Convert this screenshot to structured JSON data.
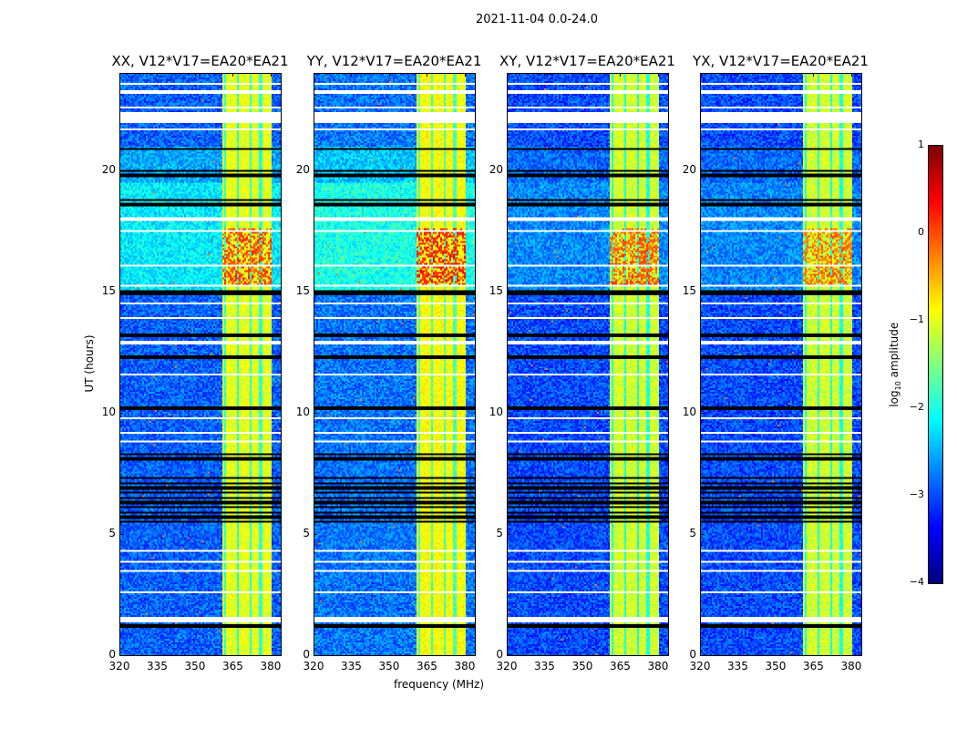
{
  "chart_data": {
    "type": "heatmap",
    "title": "2021-11-04 0.0-24.0",
    "xlabel": "frequency (MHz)",
    "ylabel": "UT (hours)",
    "xlim": [
      320,
      384
    ],
    "ylim": [
      0,
      24
    ],
    "xticks": [
      320,
      335,
      350,
      365,
      380
    ],
    "yticks": [
      0,
      5,
      10,
      15,
      20
    ],
    "colorbar": {
      "label": "log10 amplitude",
      "label_main": "log",
      "label_sub": "10",
      "label_rest": " amplitude",
      "range": [
        -4,
        1
      ],
      "ticks": [
        1,
        0,
        -1,
        -2,
        -3,
        -4
      ],
      "tick_labels": [
        "1",
        "0",
        "−1",
        "−2",
        "−3",
        "−4"
      ],
      "colormap": "jet"
    },
    "bright_band_mhz": [
      360.5,
      380
    ],
    "flagged_white_ut": [
      [
        23.55,
        23.65
      ],
      [
        23.15,
        23.3
      ],
      [
        22.55,
        22.65
      ],
      [
        22.0,
        22.4
      ],
      [
        21.65,
        21.72
      ],
      [
        17.95,
        18.05
      ],
      [
        17.45,
        17.52
      ],
      [
        16.05,
        16.12
      ],
      [
        15.25,
        15.32
      ],
      [
        14.45,
        14.55
      ],
      [
        13.85,
        13.92
      ],
      [
        12.85,
        12.95
      ],
      [
        11.55,
        11.62
      ],
      [
        9.75,
        9.85
      ],
      [
        9.15,
        9.22
      ],
      [
        8.75,
        8.85
      ],
      [
        4.25,
        4.32
      ],
      [
        3.85,
        3.92
      ],
      [
        3.45,
        3.52
      ],
      [
        2.55,
        2.62
      ],
      [
        1.35,
        1.6
      ]
    ],
    "flagged_black_ut": [
      20.9,
      20.0,
      19.8,
      18.8,
      18.6,
      15.0,
      14.9,
      13.2,
      12.3,
      10.2,
      8.3,
      8.1,
      7.3,
      7.1,
      6.9,
      6.7,
      6.5,
      6.3,
      6.1,
      5.9,
      5.7,
      5.5,
      1.2
    ],
    "panels": [
      {
        "title": "XX, V12*V17=EA20*EA21",
        "base_level": -2.9,
        "sky_level": -2.2,
        "band_level": -1.0,
        "hot_level": 0.0
      },
      {
        "title": "YY, V12*V17=EA20*EA21",
        "base_level": -2.8,
        "sky_level": -2.0,
        "band_level": -0.9,
        "hot_level": 0.2
      },
      {
        "title": "XY, V12*V17=EA20*EA21",
        "base_level": -3.0,
        "sky_level": -2.7,
        "band_level": -1.1,
        "hot_level": -0.1
      },
      {
        "title": "YX, V12*V17=EA20*EA21",
        "base_level": -3.0,
        "sky_level": -2.7,
        "band_level": -1.1,
        "hot_level": -0.2
      }
    ]
  }
}
